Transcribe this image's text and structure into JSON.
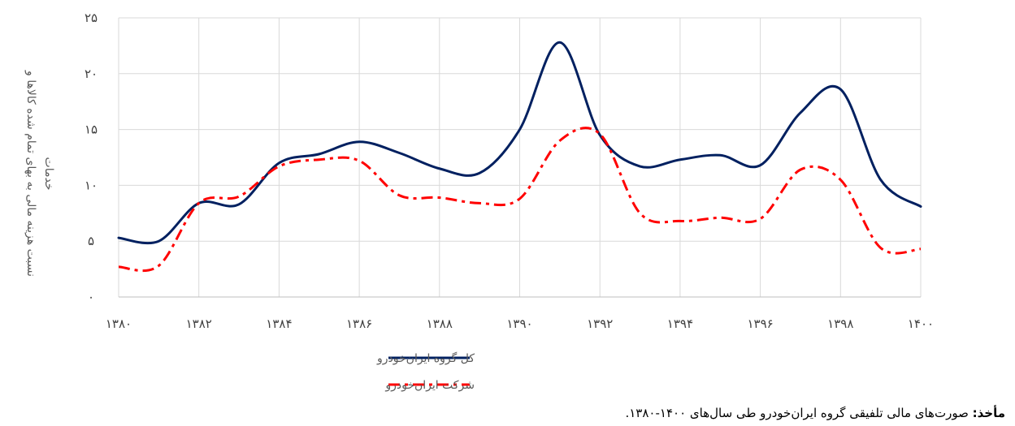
{
  "chart_data": {
    "type": "line",
    "ylabel": "نسبت هزینه مالی به بهای تمام شده کالاها و خدمات",
    "ylim": [
      0,
      25
    ],
    "yticks": [
      0,
      5,
      10,
      15,
      20,
      25
    ],
    "ytick_labels": [
      "۰",
      "۵",
      "۱۰",
      "۱۵",
      "۲۰",
      "۲۵"
    ],
    "xlim": [
      1380,
      1400
    ],
    "xticks": [
      1380,
      1382,
      1384,
      1386,
      1388,
      1390,
      1392,
      1394,
      1396,
      1398,
      1400
    ],
    "xtick_labels": [
      "۱۳۸۰",
      "۱۳۸۲",
      "۱۳۸۴",
      "۱۳۸۶",
      "۱۳۸۸",
      "۱۳۹۰",
      "۱۳۹۲",
      "۱۳۹۴",
      "۱۳۹۶",
      "۱۳۹۸",
      "۱۴۰۰"
    ],
    "grid": "vertical-and-horizontal",
    "legend_position": "bottom",
    "x": [
      1380,
      1381,
      1382,
      1383,
      1384,
      1385,
      1386,
      1387,
      1388,
      1389,
      1390,
      1391,
      1392,
      1393,
      1394,
      1395,
      1396,
      1397,
      1398,
      1399,
      1400
    ],
    "series": [
      {
        "name": "کل گروه ایران‌خودرو",
        "color": "#002060",
        "style": "solid",
        "values": [
          5.3,
          5.0,
          8.4,
          8.3,
          12.0,
          12.8,
          13.9,
          12.9,
          11.5,
          11.1,
          15.0,
          22.8,
          14.5,
          11.7,
          12.3,
          12.7,
          11.8,
          16.5,
          18.6,
          10.5,
          8.1
        ]
      },
      {
        "name": "شرکت ایران‌خودرو",
        "color": "#ff0000",
        "style": "dash-dot",
        "values": [
          2.7,
          2.8,
          8.4,
          9.0,
          11.7,
          12.3,
          12.2,
          9.1,
          8.9,
          8.4,
          8.8,
          14.0,
          14.6,
          7.5,
          6.8,
          7.1,
          7.0,
          11.4,
          10.5,
          4.4,
          4.3
        ]
      }
    ]
  },
  "source": {
    "label": "مأخذ:",
    "text": " صورت‌های مالی تلفیقی گروه ایران‌خودرو طی سال‌های ۱۴۰۰-۱۳۸۰."
  }
}
